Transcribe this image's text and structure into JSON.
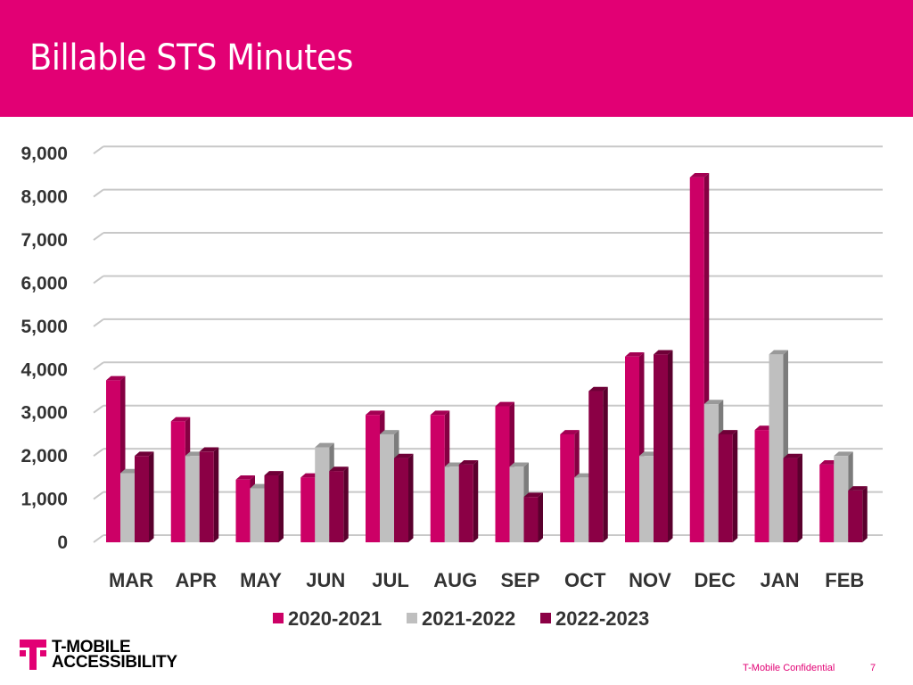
{
  "slide": {
    "title": "Billable STS Minutes",
    "footer_text": "T-Mobile Confidential",
    "page_number": "7",
    "logo_lines": [
      "T-MOBILE",
      "ACCESSIBILITY"
    ],
    "brand_color": "#e20074"
  },
  "chart_data": {
    "type": "bar",
    "style": "3d-clustered-column",
    "title": "",
    "xlabel": "",
    "ylabel": "",
    "ylim": [
      0,
      9000
    ],
    "yticks": [
      "0",
      "1,000",
      "2,000",
      "3,000",
      "4,000",
      "5,000",
      "6,000",
      "7,000",
      "8,000",
      "9,000"
    ],
    "grid": true,
    "legend_position": "bottom",
    "categories": [
      "MAR",
      "APR",
      "MAY",
      "JUN",
      "JUL",
      "AUG",
      "SEP",
      "OCT",
      "NOV",
      "DEC",
      "JAN",
      "FEB"
    ],
    "series": [
      {
        "name": "2020-2021",
        "color": "#cc0066",
        "values": [
          3750,
          2800,
          1450,
          1500,
          2950,
          2950,
          3150,
          2500,
          4300,
          8450,
          2600,
          1800
        ]
      },
      {
        "name": "2021-2022",
        "color": "#bfbfbf",
        "values": [
          1600,
          2000,
          1250,
          2200,
          2500,
          1750,
          1750,
          1500,
          2000,
          3200,
          4350,
          2000
        ]
      },
      {
        "name": "2022-2023",
        "color": "#8b0045",
        "values": [
          2000,
          2100,
          1550,
          1650,
          1950,
          1800,
          1050,
          3500,
          4350,
          2500,
          1950,
          1200
        ]
      }
    ]
  }
}
